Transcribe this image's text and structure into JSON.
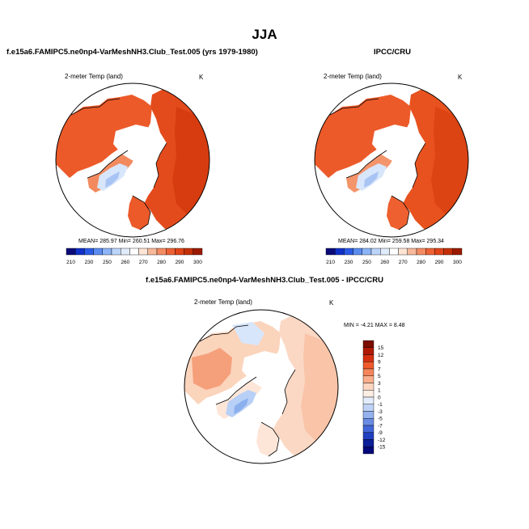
{
  "title": "JJA",
  "panels": [
    {
      "title": "f.e15a6.FAMIPC5.ne0np4-VarMeshNH3.Club_Test.005 (yrs 1979-1980)",
      "var_label": "2-meter Temp (land)",
      "units": "K",
      "stats": "MEAN= 285.97  Min= 260.51  Max= 296.76"
    },
    {
      "title": "IPCC/CRU",
      "var_label": "2-meter Temp (land)",
      "units": "K",
      "stats": "MEAN= 284.02  Min= 259.58  Max= 295.34"
    },
    {
      "title": "f.e15a6.FAMIPC5.ne0np4-VarMeshNH3.Club_Test.005 - IPCC/CRU",
      "var_label": "2-meter Temp (land)",
      "units": "K",
      "stats": "MIN =  -4.21 MAX =   8.48"
    }
  ],
  "chart_data": [
    {
      "type": "heatmap",
      "projection": "polar-stereographic",
      "title": "f.e15a6.FAMIPC5.ne0np4-VarMeshNH3.Club_Test.005 (yrs 1979-1980)",
      "variable": "2-meter Temp (land)",
      "units": "K",
      "stats": {
        "mean": 285.97,
        "min": 260.51,
        "max": 296.76
      },
      "colorbar": {
        "orientation": "horizontal",
        "levels": [
          210,
          230,
          250,
          260,
          270,
          280,
          290,
          300
        ],
        "tick_labels": [
          "210",
          "230",
          "250",
          "260",
          "270",
          "280",
          "290",
          "300"
        ],
        "colors": [
          "#0a0a78",
          "#1030c8",
          "#2a5ae6",
          "#5a8cf0",
          "#8cb4f6",
          "#bcd4fa",
          "#e0ecfb",
          "#ffffff",
          "#fde4d4",
          "#f8b89a",
          "#f48c64",
          "#ee6236",
          "#e04418",
          "#c43008",
          "#9c1a00"
        ]
      }
    },
    {
      "type": "heatmap",
      "projection": "polar-stereographic",
      "title": "IPCC/CRU",
      "variable": "2-meter Temp (land)",
      "units": "K",
      "stats": {
        "mean": 284.02,
        "min": 259.58,
        "max": 295.34
      },
      "colorbar": {
        "orientation": "horizontal",
        "levels": [
          210,
          230,
          250,
          260,
          270,
          280,
          290,
          300
        ],
        "tick_labels": [
          "210",
          "230",
          "250",
          "260",
          "270",
          "280",
          "290",
          "300"
        ],
        "colors": [
          "#0a0a78",
          "#1030c8",
          "#2a5ae6",
          "#5a8cf0",
          "#8cb4f6",
          "#bcd4fa",
          "#e0ecfb",
          "#ffffff",
          "#fde4d4",
          "#f8b89a",
          "#f48c64",
          "#ee6236",
          "#e04418",
          "#c43008",
          "#9c1a00"
        ]
      }
    },
    {
      "type": "heatmap",
      "projection": "polar-stereographic",
      "title": "f.e15a6.FAMIPC5.ne0np4-VarMeshNH3.Club_Test.005 - IPCC/CRU",
      "variable": "2-meter Temp (land)",
      "units": "K",
      "stats": {
        "min": -4.21,
        "max": 8.48
      },
      "colorbar": {
        "orientation": "vertical",
        "levels": [
          15,
          12,
          9,
          7,
          5,
          3,
          1,
          0,
          -1,
          -3,
          -5,
          -7,
          -9,
          -12,
          -15
        ],
        "tick_labels": [
          "15",
          "12",
          "9",
          "7",
          "5",
          "3",
          "1",
          "0",
          "-1",
          "-3",
          "-5",
          "-7",
          "-9",
          "-12",
          "-15"
        ],
        "colors": [
          "#7a0c00",
          "#b01a04",
          "#d43010",
          "#ee5a2c",
          "#f5855a",
          "#f9ae8c",
          "#fcd6c0",
          "#fdeee4",
          "#e2ecfa",
          "#bed2f6",
          "#94b2ee",
          "#6a8ce4",
          "#4266d8",
          "#2040c0",
          "#0c1e98",
          "#04087a"
        ]
      }
    }
  ]
}
